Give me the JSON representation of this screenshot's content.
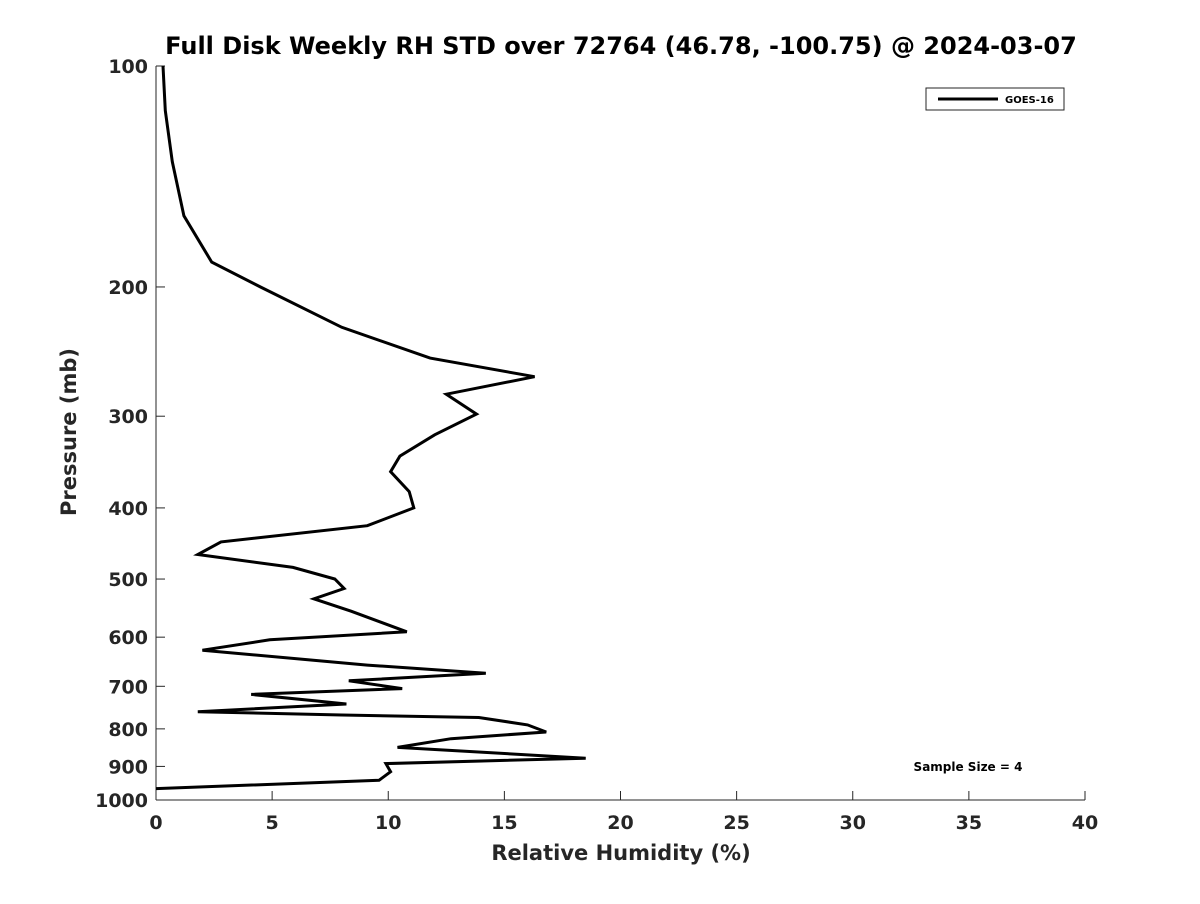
{
  "chart_data": {
    "type": "line",
    "title": "Full Disk Weekly RH STD over 72764 (46.78, -100.75) @ 2024-03-07",
    "xlabel": "Relative Humidity (%)",
    "ylabel": "Pressure (mb)",
    "xlim": [
      0,
      40
    ],
    "ylim": [
      100,
      1000
    ],
    "yscale": "log",
    "yreversed": true,
    "x_ticks": [
      0,
      5,
      10,
      15,
      20,
      25,
      30,
      35,
      40
    ],
    "y_ticks": [
      100,
      200,
      300,
      400,
      500,
      600,
      700,
      800,
      900,
      1000
    ],
    "grid": false,
    "legend_position": "top-right",
    "annotation": "Sample Size = 4",
    "series": [
      {
        "name": "GOES-16",
        "color": "#000000",
        "points": [
          [
            0.3,
            100
          ],
          [
            0.4,
            115
          ],
          [
            0.7,
            135
          ],
          [
            1.2,
            160
          ],
          [
            2.4,
            185
          ],
          [
            4.5,
            200
          ],
          [
            8.0,
            227
          ],
          [
            11.8,
            250
          ],
          [
            16.3,
            265
          ],
          [
            12.5,
            280
          ],
          [
            13.8,
            298
          ],
          [
            12.0,
            318
          ],
          [
            10.5,
            340
          ],
          [
            10.1,
            357
          ],
          [
            10.9,
            380
          ],
          [
            11.1,
            400
          ],
          [
            9.1,
            423
          ],
          [
            2.8,
            445
          ],
          [
            1.8,
            463
          ],
          [
            5.9,
            482
          ],
          [
            7.7,
            500
          ],
          [
            8.1,
            515
          ],
          [
            6.8,
            532
          ],
          [
            8.4,
            553
          ],
          [
            10.8,
            590
          ],
          [
            4.9,
            605
          ],
          [
            2.0,
            625
          ],
          [
            9.1,
            655
          ],
          [
            14.2,
            672
          ],
          [
            8.3,
            688
          ],
          [
            10.6,
            705
          ],
          [
            4.1,
            718
          ],
          [
            8.2,
            740
          ],
          [
            1.8,
            758
          ],
          [
            8.0,
            766
          ],
          [
            13.9,
            772
          ],
          [
            16.0,
            790
          ],
          [
            16.8,
            808
          ],
          [
            12.7,
            825
          ],
          [
            10.4,
            848
          ],
          [
            18.5,
            877
          ],
          [
            9.9,
            892
          ],
          [
            10.1,
            915
          ],
          [
            9.6,
            940
          ],
          [
            0.0,
            965
          ]
        ]
      }
    ]
  }
}
